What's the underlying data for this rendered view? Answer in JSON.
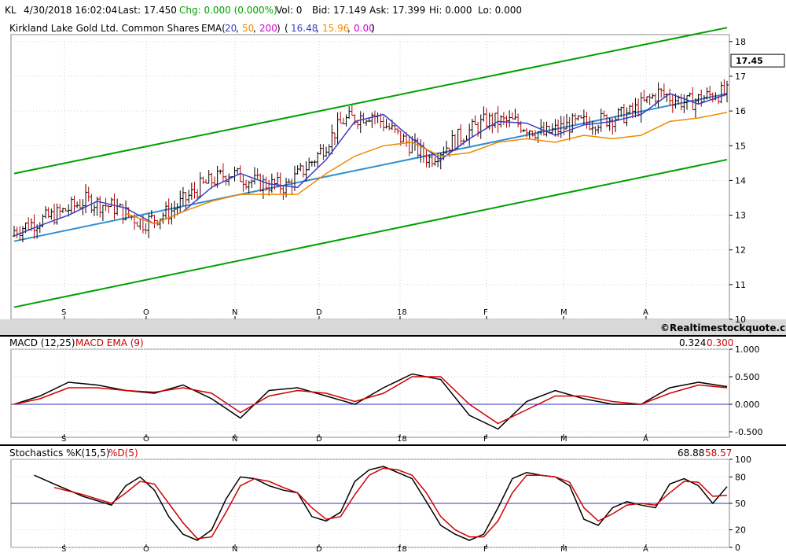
{
  "header": {
    "symbol": "KL",
    "datetime": "4/30/2018 16:02:04",
    "last": "Last: 17.450",
    "chg": "Chg: 0.000 (0.000%)",
    "vol": "Vol: 0",
    "bid": "Bid: 17.149",
    "ask": "Ask: 17.399",
    "hi": "Hi: 0.000",
    "lo": "Lo: 0.000",
    "colors": {
      "chg": "#00a000"
    }
  },
  "chart_data": [
    {
      "type": "ohlc",
      "title": "Kirkland Lake Gold Ltd. Common Shares",
      "ema_label": "EMA(",
      "ema_periods": [
        "20",
        "50",
        "200"
      ],
      "ema_values": [
        "16.48",
        "15.96",
        "0.00"
      ],
      "last_price_label": "17.45",
      "yticks": [
        "10",
        "11",
        "12",
        "13",
        "14",
        "15",
        "16",
        "17",
        "18"
      ],
      "ylim": [
        10,
        18.2
      ],
      "xticks": [
        "S",
        "O",
        "N",
        "D",
        "18",
        "F",
        "M",
        "A"
      ],
      "colors": {
        "up": "#000000",
        "down": "#b00000",
        "ema20": "#3b3bc8",
        "ema50": "#f08a00",
        "ema200": "#d000d0",
        "trend": "#2f8fd0",
        "channel": "#00a000"
      },
      "series": [
        {
          "name": "EMA 20",
          "x": [
            1,
            10,
            20,
            30,
            40,
            50,
            60,
            70,
            80,
            90,
            100,
            110,
            120,
            130,
            140,
            150,
            160,
            170,
            180,
            190,
            200,
            210,
            220,
            230,
            240,
            250
          ],
          "values": [
            12.4,
            12.7,
            13.0,
            13.4,
            13.2,
            12.75,
            13.1,
            13.8,
            14.2,
            13.9,
            13.8,
            14.6,
            15.7,
            15.9,
            15.2,
            14.6,
            15.2,
            15.7,
            15.65,
            15.3,
            15.6,
            15.7,
            15.9,
            16.5,
            16.2,
            16.48
          ]
        },
        {
          "name": "EMA 50",
          "x": [
            40,
            50,
            60,
            70,
            80,
            90,
            100,
            110,
            120,
            130,
            140,
            150,
            160,
            170,
            180,
            190,
            200,
            210,
            220,
            230,
            240,
            250
          ],
          "values": [
            13.05,
            12.75,
            13.1,
            13.4,
            13.6,
            13.6,
            13.6,
            14.2,
            14.7,
            15.0,
            15.1,
            14.7,
            14.8,
            15.1,
            15.2,
            15.1,
            15.3,
            15.2,
            15.3,
            15.7,
            15.8,
            15.96
          ]
        }
      ],
      "trend_lines": [
        {
          "name": "regression",
          "start": [
            1,
            12.25
          ],
          "end": [
            250,
            16.5
          ]
        },
        {
          "name": "upper channel",
          "start": [
            1,
            14.2
          ],
          "end": [
            250,
            18.4
          ]
        },
        {
          "name": "lower channel",
          "start": [
            1,
            10.35
          ],
          "end": [
            250,
            14.6
          ]
        }
      ],
      "credit": "©Realtimestockquote.com"
    },
    {
      "type": "line",
      "title": "MACD (12,25)",
      "signal_label": "MACD EMA (9)",
      "values_label": [
        "0.324",
        "0.300"
      ],
      "yticks": [
        "1.000",
        "0.500",
        "0.000",
        "-0.500"
      ],
      "ylim": [
        -0.6,
        1.0
      ],
      "xticks": [
        "S",
        "O",
        "N",
        "D",
        "18",
        "F",
        "M",
        "A"
      ],
      "series": [
        {
          "name": "MACD (12,25)",
          "x": [
            1,
            10,
            20,
            30,
            40,
            50,
            60,
            70,
            80,
            90,
            100,
            110,
            120,
            130,
            140,
            150,
            160,
            170,
            180,
            190,
            200,
            210,
            220,
            230,
            240,
            250
          ],
          "values": [
            0.0,
            0.15,
            0.4,
            0.35,
            0.25,
            0.2,
            0.35,
            0.1,
            -0.25,
            0.25,
            0.3,
            0.15,
            0.0,
            0.3,
            0.55,
            0.45,
            -0.2,
            -0.45,
            0.05,
            0.25,
            0.1,
            0.0,
            0.0,
            0.3,
            0.4,
            0.32
          ]
        },
        {
          "name": "MACD EMA (9)",
          "x": [
            1,
            10,
            20,
            30,
            40,
            50,
            60,
            70,
            80,
            90,
            100,
            110,
            120,
            130,
            140,
            150,
            160,
            170,
            180,
            190,
            200,
            210,
            220,
            230,
            240,
            250
          ],
          "values": [
            0.0,
            0.1,
            0.3,
            0.3,
            0.25,
            0.22,
            0.3,
            0.2,
            -0.15,
            0.15,
            0.25,
            0.2,
            0.05,
            0.2,
            0.5,
            0.5,
            0.0,
            -0.35,
            -0.1,
            0.15,
            0.15,
            0.05,
            0.0,
            0.2,
            0.35,
            0.3
          ]
        }
      ]
    },
    {
      "type": "line",
      "title": "Stochastics %K(15,5)",
      "signal_label": "%D(5)",
      "values_label": [
        "68.88",
        "58.57"
      ],
      "yticks": [
        "100",
        "80",
        "50",
        "20",
        "0"
      ],
      "ylim": [
        0,
        100
      ],
      "xticks": [
        "S",
        "O",
        "N",
        "D",
        "18",
        "F",
        "M",
        "A"
      ],
      "series": [
        {
          "name": "%K(15,5)",
          "x": [
            8,
            15,
            25,
            35,
            40,
            45,
            50,
            55,
            60,
            65,
            70,
            75,
            80,
            85,
            90,
            95,
            100,
            105,
            110,
            115,
            120,
            125,
            130,
            135,
            140,
            145,
            150,
            155,
            160,
            165,
            170,
            175,
            180,
            185,
            190,
            195,
            200,
            205,
            210,
            215,
            220,
            225,
            230,
            235,
            240,
            245,
            250
          ],
          "values": [
            82,
            72,
            58,
            48,
            70,
            80,
            65,
            35,
            15,
            8,
            20,
            55,
            80,
            78,
            70,
            65,
            62,
            35,
            30,
            40,
            75,
            88,
            92,
            85,
            78,
            52,
            25,
            15,
            8,
            15,
            45,
            78,
            85,
            82,
            80,
            70,
            32,
            25,
            45,
            52,
            48,
            45,
            72,
            78,
            70,
            50,
            69
          ]
        },
        {
          "name": "%D(5)",
          "x": [
            15,
            25,
            35,
            40,
            45,
            50,
            55,
            60,
            65,
            70,
            75,
            80,
            85,
            90,
            95,
            100,
            105,
            110,
            115,
            120,
            125,
            130,
            135,
            140,
            145,
            150,
            155,
            160,
            165,
            170,
            175,
            180,
            185,
            190,
            195,
            200,
            205,
            210,
            215,
            220,
            225,
            230,
            235,
            240,
            245,
            250
          ],
          "values": [
            68,
            60,
            50,
            62,
            75,
            72,
            50,
            28,
            10,
            12,
            40,
            70,
            78,
            75,
            68,
            62,
            45,
            32,
            35,
            60,
            82,
            90,
            88,
            82,
            62,
            35,
            20,
            12,
            12,
            30,
            62,
            82,
            82,
            80,
            74,
            45,
            30,
            38,
            48,
            50,
            48,
            62,
            75,
            74,
            58,
            59
          ]
        }
      ]
    }
  ]
}
